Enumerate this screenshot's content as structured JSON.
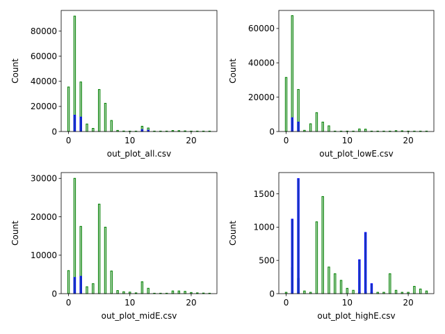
{
  "colors": {
    "green": "#008000",
    "blue": "#0000ff",
    "blue_fill": "#1f4f9e",
    "green_fill": "#b8d9b8"
  },
  "chart_data": [
    {
      "type": "bar",
      "xlabel": "out_plot_all.csv",
      "ylabel": "Count",
      "xlim": [
        -1.2,
        24.2
      ],
      "ylim": [
        0,
        96500
      ],
      "xticks": [
        0,
        10,
        20
      ],
      "yticks": [
        0,
        20000,
        40000,
        60000,
        80000
      ],
      "series": [
        {
          "color": "#008000",
          "x": [
            0,
            1,
            2,
            3,
            4,
            5,
            6,
            7,
            8,
            9,
            10,
            11,
            12,
            13,
            14,
            15,
            16,
            17,
            18,
            19,
            20,
            21,
            22,
            23
          ],
          "values": [
            35500,
            92000,
            39500,
            6000,
            2500,
            33500,
            22500,
            8800,
            900,
            400,
            300,
            200,
            4200,
            2800,
            300,
            150,
            100,
            800,
            700,
            500,
            300,
            200,
            150,
            100
          ]
        },
        {
          "color": "#0000ff",
          "x": [
            1,
            2,
            12,
            13
          ],
          "values": [
            13000,
            11500,
            1500,
            1000
          ]
        }
      ]
    },
    {
      "type": "bar",
      "xlabel": "out_plot_lowE.csv",
      "ylabel": "Count",
      "xlim": [
        -1.2,
        24.2
      ],
      "ylim": [
        0,
        70500
      ],
      "xticks": [
        0,
        10,
        20
      ],
      "yticks": [
        0,
        20000,
        40000,
        60000
      ],
      "series": [
        {
          "color": "#008000",
          "x": [
            0,
            1,
            2,
            3,
            4,
            5,
            6,
            7,
            8,
            9,
            10,
            11,
            12,
            13,
            14,
            15,
            16,
            17,
            18,
            19,
            20,
            21,
            22,
            23
          ],
          "values": [
            31500,
            67500,
            24500,
            700,
            4500,
            11000,
            5500,
            3300,
            200,
            100,
            100,
            100,
            1500,
            1400,
            100,
            100,
            100,
            100,
            500,
            400,
            100,
            100,
            100,
            100
          ]
        },
        {
          "color": "#0000ff",
          "x": [
            1,
            2
          ],
          "values": [
            8000,
            5500
          ]
        }
      ]
    },
    {
      "type": "bar",
      "xlabel": "out_plot_midE.csv",
      "ylabel": "Count",
      "xlim": [
        -1.2,
        24.2
      ],
      "ylim": [
        0,
        31500
      ],
      "xticks": [
        0,
        10,
        20
      ],
      "yticks": [
        0,
        10000,
        20000,
        30000
      ],
      "series": [
        {
          "color": "#008000",
          "x": [
            0,
            1,
            2,
            3,
            4,
            5,
            6,
            7,
            8,
            9,
            10,
            11,
            12,
            13,
            14,
            15,
            16,
            17,
            18,
            19,
            20,
            21,
            22,
            23
          ],
          "values": [
            6000,
            30000,
            17500,
            1800,
            2600,
            23300,
            17300,
            5900,
            800,
            500,
            400,
            200,
            3100,
            1400,
            100,
            100,
            100,
            700,
            700,
            600,
            300,
            200,
            150,
            100
          ]
        },
        {
          "color": "#0000ff",
          "x": [
            1,
            2
          ],
          "values": [
            4200,
            4500
          ]
        }
      ]
    },
    {
      "type": "bar",
      "xlabel": "out_plot_highE.csv",
      "ylabel": "Count",
      "xlim": [
        -1.2,
        24.2
      ],
      "ylim": [
        0,
        1820
      ],
      "xticks": [
        0,
        10,
        20
      ],
      "yticks": [
        0,
        500,
        1000,
        1500
      ],
      "series": [
        {
          "color": "#008000",
          "x": [
            0,
            1,
            2,
            3,
            4,
            5,
            6,
            7,
            8,
            9,
            10,
            11,
            12,
            13,
            14,
            15,
            16,
            17,
            18,
            19,
            20,
            21,
            22,
            23
          ],
          "values": [
            20,
            390,
            230,
            40,
            20,
            1080,
            1460,
            400,
            300,
            200,
            80,
            50,
            20,
            30,
            20,
            20,
            20,
            300,
            50,
            20,
            20,
            110,
            70,
            40
          ]
        },
        {
          "color": "#0000ff",
          "x": [
            1,
            2,
            12,
            13,
            14
          ],
          "values": [
            1120,
            1730,
            510,
            920,
            150
          ]
        }
      ]
    }
  ]
}
